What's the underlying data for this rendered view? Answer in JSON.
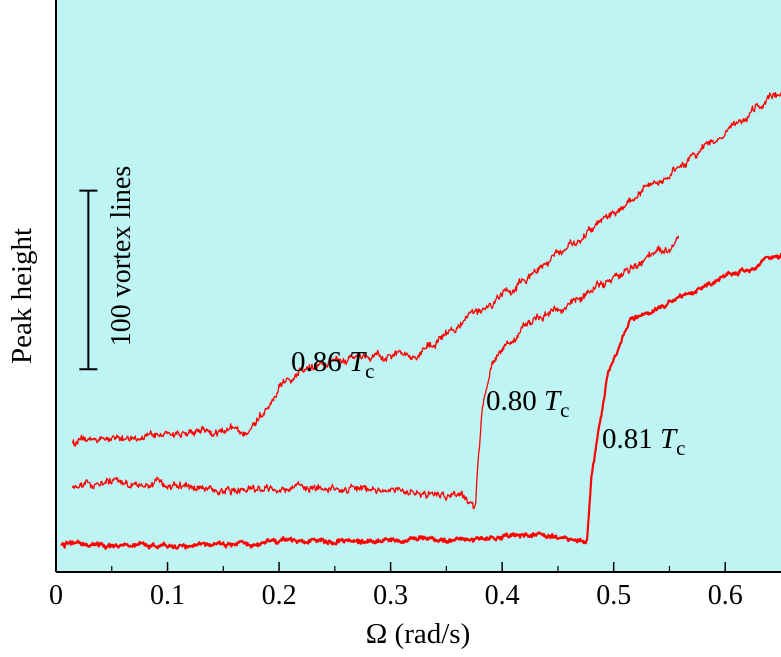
{
  "chart_data": {
    "type": "line",
    "title": "",
    "xlabel": "Ω (rad/s)",
    "ylabel": "Peak height",
    "xlim": [
      0,
      0.65
    ],
    "ylim": [
      0,
      330
    ],
    "x_ticks": [
      0,
      0.1,
      0.2,
      0.3,
      0.4,
      0.5,
      0.6
    ],
    "x_tick_labels": [
      "0",
      "0.1",
      "0.2",
      "0.3",
      "0.4",
      "0.5",
      "0.6"
    ],
    "grid": false,
    "legend": "none",
    "background_color": "#bff4f4",
    "line_color": "#ff0000",
    "scale_bar": {
      "label": "100 vortex lines",
      "vortex_lines": 100,
      "y_from": 117,
      "y_to": 220,
      "x_position": 0.029
    },
    "series": [
      {
        "name": "0.86 Tc",
        "label_number": "0.86",
        "label_symbol": "T",
        "label_sub": "c",
        "noise": 2.4,
        "x": [
          0.015,
          0.05,
          0.1,
          0.13,
          0.16,
          0.165,
          0.185,
          0.2,
          0.22,
          0.26,
          0.3,
          0.33,
          0.345,
          0.37,
          0.4,
          0.45,
          0.5,
          0.55,
          0.6,
          0.65
        ],
        "y": [
          75,
          77,
          79,
          81,
          82,
          78,
          92,
          107,
          118,
          122,
          125,
          128,
          134,
          145,
          160,
          183,
          207,
          230,
          253,
          278
        ]
      },
      {
        "name": "0.80 Tc",
        "label_number": "0.80",
        "label_symbol": "T",
        "label_sub": "c",
        "noise": 2.4,
        "x": [
          0.015,
          0.05,
          0.1,
          0.15,
          0.2,
          0.25,
          0.3,
          0.33,
          0.36,
          0.372,
          0.376,
          0.378,
          0.382,
          0.39,
          0.42,
          0.46,
          0.5,
          0.53,
          0.558
        ],
        "y": [
          48,
          51,
          50,
          47,
          48,
          49,
          47,
          46,
          44,
          40,
          37,
          60,
          95,
          120,
          142,
          156,
          168,
          180,
          192
        ]
      },
      {
        "name": "0.81 Tc",
        "label_number": "0.81",
        "label_symbol": "T",
        "label_sub": "c",
        "noise": 1.5,
        "x": [
          0.005,
          0.05,
          0.1,
          0.2,
          0.3,
          0.38,
          0.43,
          0.475,
          0.476,
          0.48,
          0.495,
          0.515,
          0.56,
          0.6,
          0.65
        ],
        "y": [
          16,
          16,
          15,
          17,
          18,
          19,
          21,
          18,
          20,
          55,
          115,
          145,
          158,
          170,
          183
        ]
      }
    ]
  }
}
